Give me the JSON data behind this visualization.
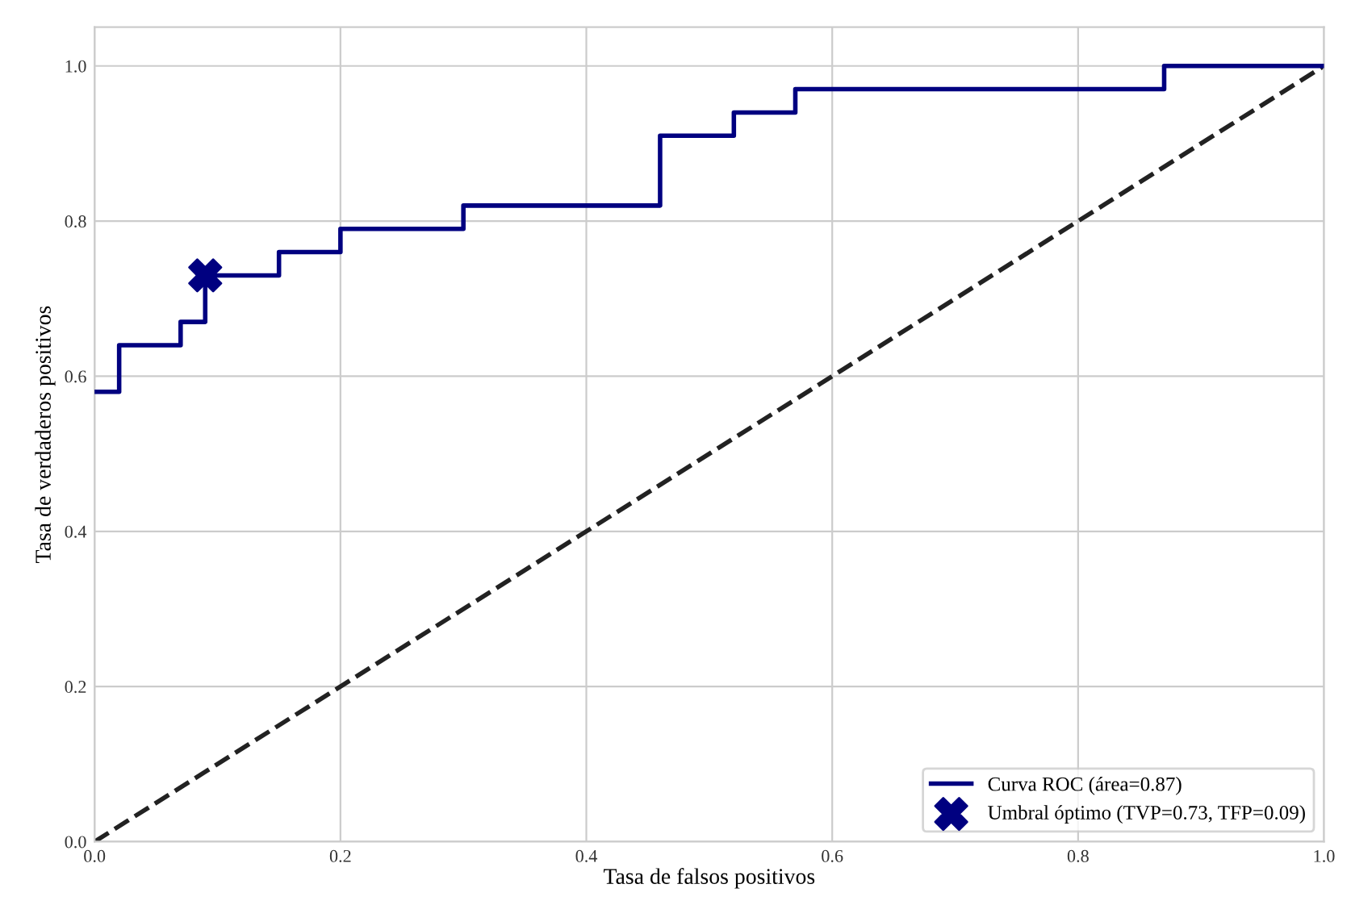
{
  "chart_data": {
    "type": "step",
    "xlabel": "Tasa de falsos positivos",
    "ylabel": "Tasa de verdaderos positivos",
    "xlim": [
      0,
      1
    ],
    "ylim": [
      0,
      1.05
    ],
    "xticks": [
      {
        "value": 0,
        "label": "0.0"
      },
      0.2,
      0.4,
      0.6,
      0.8,
      {
        "value": 1,
        "label": "1.0"
      }
    ],
    "yticks": [
      {
        "value": 0,
        "label": "0.0"
      },
      0.2,
      0.4,
      0.6,
      0.8,
      {
        "value": 1,
        "label": "1.0"
      }
    ],
    "grid": true,
    "legend": "bottom right",
    "series": [
      {
        "name": "Curva ROC (área=0.87)",
        "color": "#000080",
        "line_style": "solid",
        "x": [
          0,
          0.02,
          0.07,
          0.09,
          0.15,
          0.2,
          0.3,
          0.46,
          0.52,
          0.57,
          0.87,
          1.0
        ],
        "values": [
          0.58,
          0.64,
          0.67,
          0.73,
          0.76,
          0.79,
          0.82,
          0.91,
          0.94,
          0.97,
          1.0,
          1.0
        ]
      },
      {
        "type": "line",
        "color": "#222222",
        "line_style": "dashed",
        "x": [
          0,
          1
        ],
        "values": [
          0,
          1
        ]
      },
      {
        "name": "Umbral óptimo (TVP=0.73, TFP=0.09)",
        "type": "scatter",
        "color": "#000080",
        "marker": "cross",
        "x": [
          0.09
        ],
        "values": [
          0.73
        ]
      }
    ]
  }
}
